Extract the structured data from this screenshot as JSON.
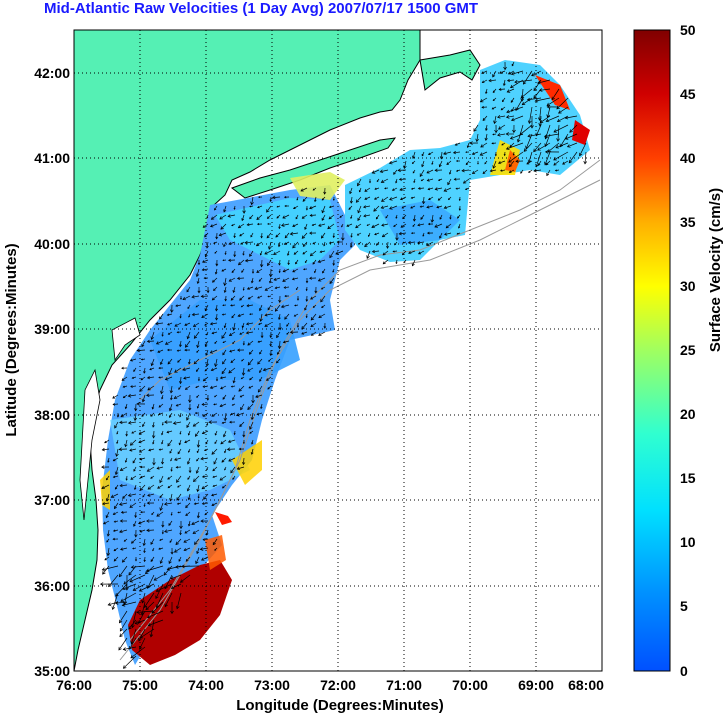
{
  "title": "Mid-Atlantic Raw Velocities (1 Day Avg) 2007/07/17 1500 GMT",
  "map": {
    "xlabel": "Longitude (Degrees:Minutes)",
    "ylabel": "Latitude (Degrees:Minutes)",
    "x_ticks": [
      "76:00",
      "75:00",
      "74:00",
      "73:00",
      "72:00",
      "71:00",
      "70:00",
      "69:00",
      "68:00"
    ],
    "y_ticks": [
      "42:00",
      "41:00",
      "40:00",
      "39:00",
      "38:00",
      "37:00",
      "36:00",
      "35:00"
    ],
    "lon_range": [
      -76,
      -68
    ],
    "lat_range": [
      35,
      42.5
    ],
    "land_color": "#55f0b4",
    "grid": "dotted"
  },
  "colorbar": {
    "label": "Surface Velocity (cm/s)",
    "ticks": [
      "50",
      "45",
      "40",
      "35",
      "30",
      "25",
      "20",
      "15",
      "10",
      "5",
      "0"
    ],
    "min": 0,
    "max": 50,
    "colormap": "jet"
  }
}
